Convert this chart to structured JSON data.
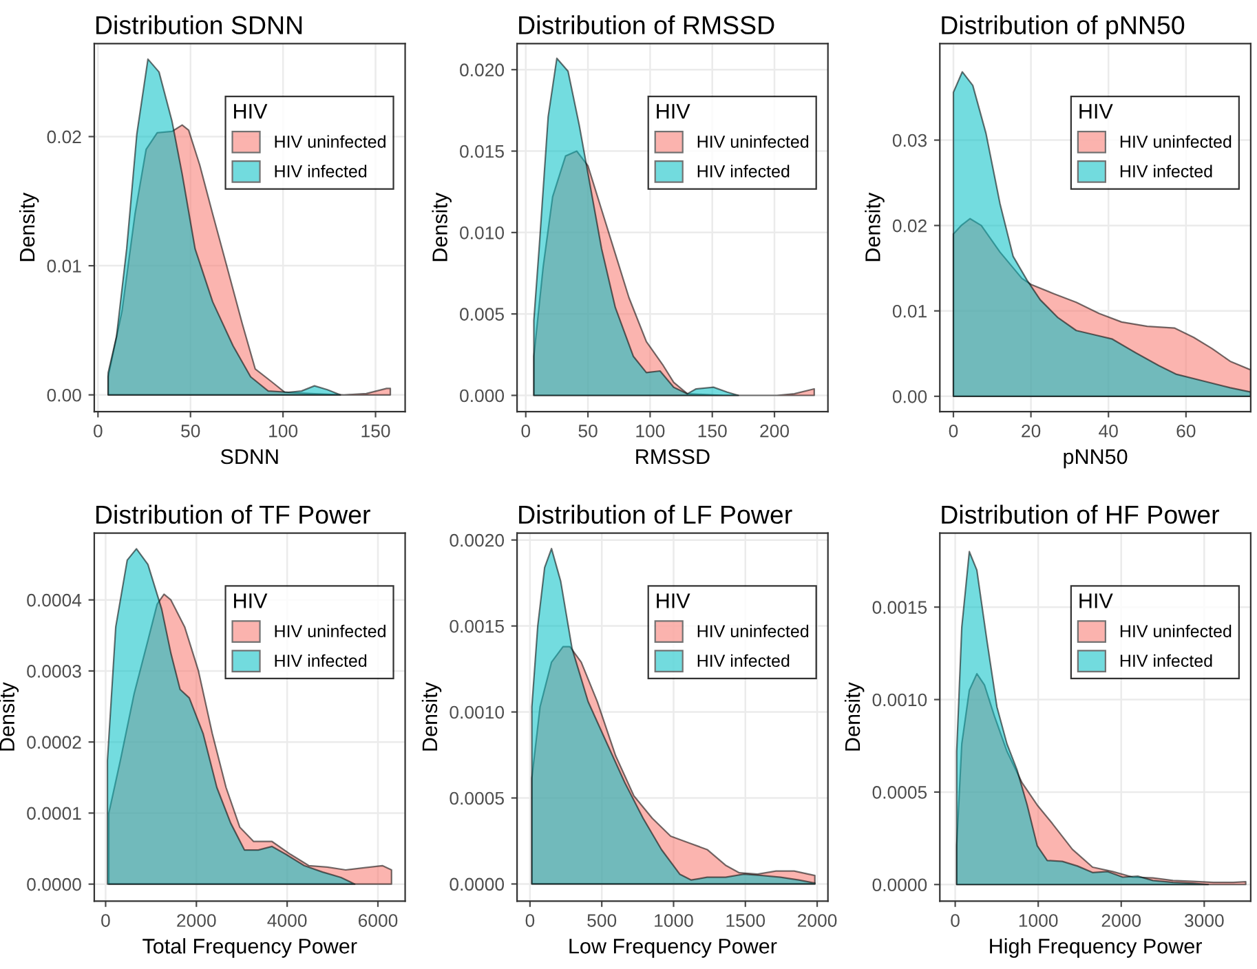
{
  "chart_data": [
    {
      "type": "area",
      "title": "Distribution SDNN",
      "xlabel": "SDNN",
      "ylabel": "Density",
      "legend_title": "HIV",
      "legend": "top right",
      "grid": true,
      "xlim": [
        -2,
        166
      ],
      "ylim": [
        -0.0013,
        0.0272
      ],
      "xticks": [
        0,
        50,
        100,
        150
      ],
      "yticks": [
        {
          "value": 0,
          "label": "0.00"
        },
        {
          "value": 0.01,
          "label": "0.01"
        },
        {
          "value": 0.02,
          "label": "0.02"
        }
      ],
      "series": [
        {
          "name": "HIV uninfected",
          "color": "#f8766d",
          "x": [
            5.5,
            13,
            20,
            26,
            32,
            40,
            45.5,
            49,
            55,
            62,
            69,
            78,
            85,
            94,
            101,
            115,
            133,
            145,
            156,
            158
          ],
          "values": [
            0.0014,
            0.0065,
            0.014,
            0.019,
            0.0203,
            0.0204,
            0.0209,
            0.0205,
            0.0178,
            0.014,
            0.0103,
            0.0055,
            0.002,
            0.001,
            0.0002,
            0.0001,
            0,
            0.0001,
            0.0005,
            0.0005
          ]
        },
        {
          "name": "HIV infected",
          "color": "#00bfc4",
          "x": [
            5.5,
            10,
            15.5,
            21,
            27,
            33,
            40,
            45.5,
            52.5,
            62,
            73,
            82.5,
            92,
            103,
            110,
            117,
            124,
            131
          ],
          "values": [
            0.0017,
            0.0045,
            0.0113,
            0.0202,
            0.026,
            0.025,
            0.0212,
            0.0171,
            0.0113,
            0.0072,
            0.0038,
            0.0014,
            0.0003,
            0.0002,
            0.0003,
            0.0007,
            0.0004,
            0
          ]
        }
      ]
    },
    {
      "type": "area",
      "title": "Distribution of RMSSD",
      "xlabel": "RMSSD",
      "ylabel": "Density",
      "legend_title": "HIV",
      "legend": "top right",
      "grid": true,
      "xlim": [
        -7,
        243
      ],
      "ylim": [
        -0.001,
        0.0216
      ],
      "xticks": [
        0,
        50,
        100,
        150,
        200
      ],
      "yticks": [
        {
          "value": 0,
          "label": "0.000"
        },
        {
          "value": 0.005,
          "label": "0.005"
        },
        {
          "value": 0.01,
          "label": "0.010"
        },
        {
          "value": 0.015,
          "label": "0.015"
        },
        {
          "value": 0.02,
          "label": "0.020"
        }
      ],
      "series": [
        {
          "name": "HIV uninfected",
          "color": "#f8766d",
          "x": [
            6.5,
            14,
            21.6,
            32,
            41,
            50,
            61,
            72,
            83,
            97,
            110,
            119,
            130,
            159,
            202,
            216,
            232
          ],
          "values": [
            0.0024,
            0.0079,
            0.0122,
            0.0147,
            0.015,
            0.0141,
            0.0114,
            0.0087,
            0.006,
            0.0033,
            0.0019,
            0.0008,
            0.0001,
            0,
            0,
            0.0001,
            0.0004
          ]
        },
        {
          "name": "HIV infected",
          "color": "#00bfc4",
          "x": [
            6.5,
            11,
            18,
            25,
            34,
            43,
            52,
            61,
            72,
            86.5,
            97,
            108,
            119,
            130,
            137,
            151,
            162,
            171
          ],
          "values": [
            0.0046,
            0.0093,
            0.0171,
            0.0207,
            0.0199,
            0.0166,
            0.0128,
            0.009,
            0.0054,
            0.0024,
            0.0014,
            0.0015,
            0.0005,
            0.0001,
            0.0004,
            0.0005,
            0.0002,
            0
          ]
        }
      ]
    },
    {
      "type": "area",
      "title": "Distribution of pNN50",
      "xlabel": "pNN50",
      "ylabel": "Density",
      "legend_title": "HIV",
      "legend": "top right",
      "grid": true,
      "xlim": [
        -3.5,
        76.7
      ],
      "ylim": [
        -0.0018,
        0.0413
      ],
      "xticks": [
        0,
        20,
        40,
        60
      ],
      "yticks": [
        {
          "value": 0,
          "label": "0.00"
        },
        {
          "value": 0.01,
          "label": "0.01"
        },
        {
          "value": 0.02,
          "label": "0.02"
        },
        {
          "value": 0.03,
          "label": "0.03"
        }
      ],
      "series": [
        {
          "name": "HIV uninfected",
          "color": "#f8766d",
          "x": [
            0,
            2,
            4.3,
            7.2,
            12,
            17.7,
            20,
            26,
            31.7,
            37.6,
            43.4,
            50,
            57,
            62,
            66.7,
            71.4,
            76.7
          ],
          "values": [
            0.019,
            0.02,
            0.0208,
            0.02,
            0.0169,
            0.0138,
            0.0131,
            0.012,
            0.011,
            0.0097,
            0.0087,
            0.0082,
            0.008,
            0.0069,
            0.0056,
            0.0041,
            0.0031
          ]
        },
        {
          "name": "HIV infected",
          "color": "#00bfc4",
          "x": [
            0,
            2.3,
            5,
            8.4,
            12,
            15.4,
            19,
            22.4,
            27,
            31.7,
            36.4,
            41,
            47,
            53,
            57.4,
            64.4,
            71.4,
            76.7
          ],
          "values": [
            0.0356,
            0.038,
            0.0364,
            0.0308,
            0.0226,
            0.0164,
            0.0136,
            0.0113,
            0.0092,
            0.0077,
            0.0072,
            0.0067,
            0.0051,
            0.0036,
            0.0026,
            0.0018,
            0.001,
            0.0005
          ]
        }
      ]
    },
    {
      "type": "area",
      "title": "Distribution of TF Power",
      "xlabel": "Total Frequency Power",
      "ylabel": "Density",
      "legend_title": "HIV",
      "legend": "top right",
      "grid": true,
      "xlim": [
        -250,
        6600
      ],
      "ylim": [
        -2.4e-05,
        0.000494
      ],
      "xticks": [
        0,
        2000,
        4000,
        6000
      ],
      "yticks": [
        {
          "value": 0,
          "label": "0.0000"
        },
        {
          "value": 0.0001,
          "label": "0.0001"
        },
        {
          "value": 0.0002,
          "label": "0.0002"
        },
        {
          "value": 0.0003,
          "label": "0.0003"
        },
        {
          "value": 0.0004,
          "label": "0.0004"
        }
      ],
      "series": [
        {
          "name": "HIV uninfected",
          "color": "#f8766d",
          "x": [
            70,
            324,
            628,
            932,
            1135,
            1287,
            1438,
            1742,
            2046,
            2350,
            2654,
            2958,
            3262,
            3667,
            4072,
            4477,
            4883,
            5288,
            5693,
            6098,
            6300
          ],
          "values": [
            0.0001,
            0.000174,
            0.000268,
            0.000343,
            0.000394,
            0.000408,
            0.0004,
            0.000362,
            0.0003,
            0.000212,
            0.000136,
            8e-05,
            6e-05,
            6e-05,
            4.2e-05,
            2.6e-05,
            2.4e-05,
            2e-05,
            2.3e-05,
            2.6e-05,
            2e-05
          ]
        },
        {
          "name": "HIV infected",
          "color": "#00bfc4",
          "x": [
            40,
            223,
            476,
            679,
            932,
            1236,
            1438,
            1641,
            1844,
            2148,
            2451,
            2755,
            3059,
            3363,
            3667,
            3971,
            4376,
            4781,
            5187,
            5490
          ],
          "values": [
            0.000174,
            0.000362,
            0.000456,
            0.000472,
            0.00045,
            0.000387,
            0.000325,
            0.000274,
            0.000262,
            0.000212,
            0.000136,
            8.6e-05,
            4.8e-05,
            4.8e-05,
            5.3e-05,
            4.2e-05,
            2.6e-05,
            1.7e-05,
            9.4e-06,
            0
          ]
        }
      ]
    },
    {
      "type": "area",
      "title": "Distribution of LF Power",
      "xlabel": "Low Frequency Power",
      "ylabel": "Density",
      "legend_title": "HIV",
      "legend": "top right",
      "grid": true,
      "xlim": [
        -90,
        2075
      ],
      "ylim": [
        -0.0001,
        0.00204
      ],
      "xticks": [
        0,
        500,
        1000,
        1500,
        2000
      ],
      "yticks": [
        {
          "value": 0,
          "label": "0.0000"
        },
        {
          "value": 0.0005,
          "label": "0.0005"
        },
        {
          "value": 0.001,
          "label": "0.0010"
        },
        {
          "value": 0.0015,
          "label": "0.0015"
        },
        {
          "value": 0.002,
          "label": "0.0020"
        }
      ],
      "series": [
        {
          "name": "HIV uninfected",
          "color": "#f8766d",
          "x": [
            13,
            70,
            150,
            230,
            278,
            357,
            469,
            597,
            724,
            852,
            980,
            1107,
            1234,
            1362,
            1458,
            1585,
            1713,
            1840,
            1984
          ],
          "values": [
            0.000616,
            0.00103,
            0.00129,
            0.00138,
            0.00138,
            0.00129,
            0.00106,
            0.000745,
            0.000512,
            0.000382,
            0.000278,
            0.000239,
            0.0002,
            0.000109,
            6.5e-05,
            5.7e-05,
            7.5e-05,
            7.5e-05,
            4.9e-05
          ]
        },
        {
          "name": "HIV infected",
          "color": "#00bfc4",
          "x": [
            13,
            54,
            102,
            150,
            214,
            293,
            405,
            533,
            660,
            788,
            916,
            1043,
            1123,
            1234,
            1362,
            1490,
            1617,
            1745,
            1872,
            1984
          ],
          "values": [
            0.00103,
            0.0015,
            0.00184,
            0.00195,
            0.00176,
            0.00137,
            0.00106,
            0.000823,
            0.00059,
            0.000382,
            0.0002,
            5.7e-05,
            2.3e-05,
            3.9e-05,
            3.9e-05,
            5.7e-05,
            4.9e-05,
            3.9e-05,
            2.3e-05,
            5e-06
          ]
        }
      ]
    },
    {
      "type": "area",
      "title": "Distribution of HF Power",
      "xlabel": "High Frequency Power",
      "ylabel": "Density",
      "legend_title": "HIV",
      "legend": "top right",
      "grid": true,
      "xlim": [
        -185,
        3560
      ],
      "ylim": [
        -9e-05,
        0.0019
      ],
      "xticks": [
        0,
        1000,
        2000,
        3000
      ],
      "yticks": [
        {
          "value": 0,
          "label": "0.0000"
        },
        {
          "value": 0.0005,
          "label": "0.0005"
        },
        {
          "value": 0.001,
          "label": "0.0010"
        },
        {
          "value": 0.0015,
          "label": "0.0015"
        }
      ],
      "series": [
        {
          "name": "HIV uninfected",
          "color": "#f8766d",
          "x": [
            18,
            79,
            170,
            261,
            352,
            473,
            624,
            806,
            988,
            1170,
            1412,
            1655,
            1897,
            2139,
            2382,
            2624,
            2867,
            3109,
            3352,
            3500
          ],
          "values": [
            0.00021,
            0.00076,
            0.00105,
            0.00114,
            0.00108,
            0.00091,
            0.00072,
            0.00055,
            0.00043,
            0.00033,
            0.00019,
            9.4e-05,
            7e-05,
            4e-05,
            3.6e-05,
            2.2e-05,
            1.7e-05,
            1.2e-05,
            1.2e-05,
            1.5e-05
          ]
        },
        {
          "name": "HIV infected",
          "color": "#00bfc4",
          "x": [
            18,
            79,
            170,
            261,
            382,
            503,
            624,
            745,
            867,
            988,
            1109,
            1291,
            1473,
            1655,
            1836,
            2018,
            2200,
            2382,
            2624,
            2867,
            3048
          ],
          "values": [
            0.00072,
            0.00139,
            0.0018,
            0.0017,
            0.00132,
            0.00096,
            0.00076,
            0.00062,
            0.00043,
            0.00021,
            0.00013,
            0.000125,
            0.0001,
            6.5e-05,
            7e-05,
            4e-05,
            4.5e-05,
            2.2e-05,
            1.2e-05,
            7e-06,
            0
          ]
        }
      ]
    }
  ]
}
